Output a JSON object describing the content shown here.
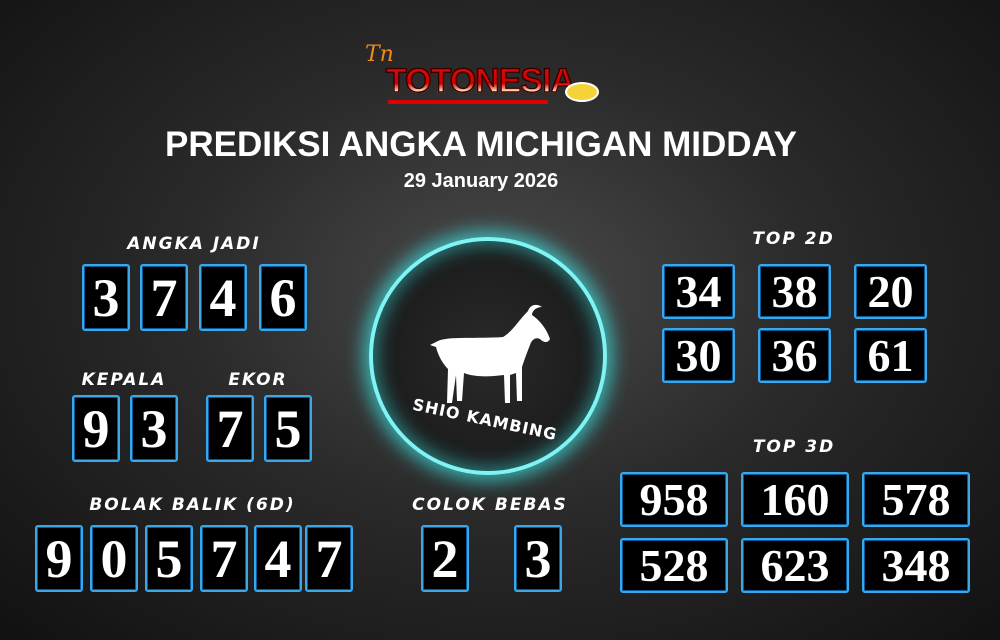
{
  "brand": {
    "logo_text": "TOTONESIA",
    "logo_mark": "TN"
  },
  "header": {
    "title": "PREDIKSI ANGKA MICHIGAN MIDDAY",
    "date": "29 January 2026"
  },
  "angka_jadi": {
    "label": "ANGKA JADI",
    "digits": [
      "3",
      "7",
      "4",
      "6"
    ]
  },
  "kepala": {
    "label": "KEPALA",
    "digits": [
      "9",
      "3"
    ]
  },
  "ekor": {
    "label": "EKOR",
    "digits": [
      "7",
      "5"
    ]
  },
  "bolak_balik": {
    "label": "BOLAK BALIK (6D)",
    "digits": [
      "9",
      "0",
      "5",
      "7",
      "4",
      "7"
    ]
  },
  "colok_bebas": {
    "label": "COLOK BEBAS",
    "digits": [
      "2",
      "3"
    ]
  },
  "shio": {
    "label": "SHIO KAMBING",
    "icon": "goat-icon"
  },
  "top2d": {
    "label": "TOP 2D",
    "values": [
      "34",
      "38",
      "20",
      "30",
      "36",
      "61"
    ]
  },
  "top3d": {
    "label": "TOP 3D",
    "values": [
      "958",
      "160",
      "578",
      "528",
      "623",
      "348"
    ]
  },
  "colors": {
    "box_border": "#3aa8e8",
    "glow": "#7ff4f4",
    "logo_red": "#d00000"
  }
}
